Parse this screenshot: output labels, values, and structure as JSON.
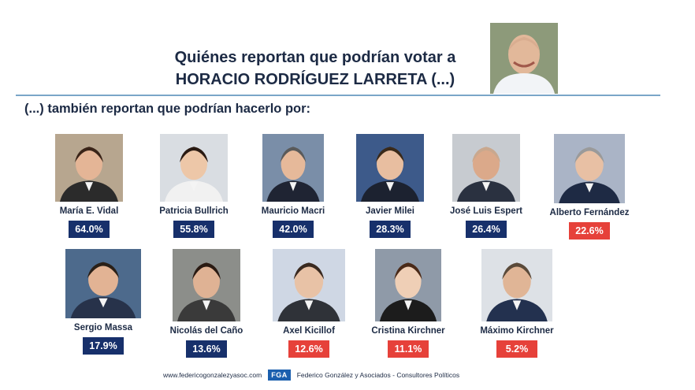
{
  "header": {
    "title_line1": "Quiénes reportan que podrían votar a",
    "title_line2": "HORACIO RODRÍGUEZ LARRETA (...)",
    "subtitle": "(...) también reportan que podrían hacerlo por:"
  },
  "colors": {
    "navy": "#17306b",
    "red": "#e6413a",
    "title": "#1c2a44",
    "divider": "#7aa6c8"
  },
  "chart_data": {
    "type": "bar",
    "title": "Quiénes reportan que podrían votar a HORACIO RODRÍGUEZ LARRETA (...)",
    "subtitle": "(...) también reportan que podrían hacerlo por:",
    "categories": [
      "María E. Vidal",
      "Patricia Bullrich",
      "Mauricio Macri",
      "Javier Milei",
      "José Luis Espert",
      "Alberto Fernández",
      "Sergio Massa",
      "Nicolás del Caño",
      "Axel Kicillof",
      "Cristina Kirchner",
      "Máximo Kirchner"
    ],
    "values": [
      64.0,
      55.8,
      42.0,
      28.3,
      26.4,
      22.6,
      17.9,
      13.6,
      12.6,
      11.1,
      5.2
    ],
    "labels": [
      "64.0%",
      "55.8%",
      "42.0%",
      "28.3%",
      "26.4%",
      "22.6%",
      "17.9%",
      "13.6%",
      "12.6%",
      "11.1%",
      "5.2%"
    ],
    "label_colors": [
      "navy",
      "navy",
      "navy",
      "navy",
      "navy",
      "red",
      "navy",
      "navy",
      "red",
      "red",
      "red"
    ]
  },
  "footer": {
    "website": "www.federicogonzalezyasoc.com",
    "logo": "FGA",
    "company": "Federico González y Asociados - Consultores Políticos"
  }
}
